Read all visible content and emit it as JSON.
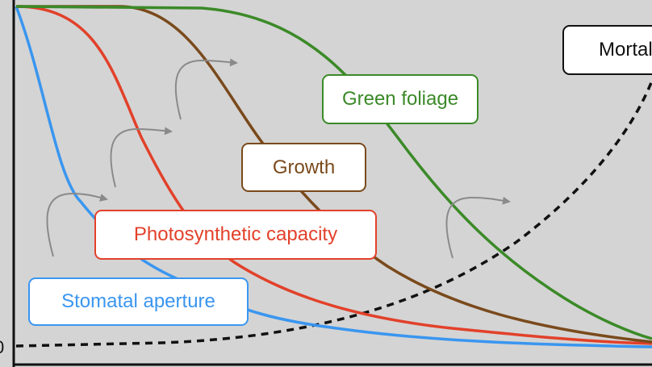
{
  "labels": {
    "mortality": "Mortality",
    "green_foliage": "Green foliage",
    "growth": "Growth",
    "photosynthetic_capacity": "Photosynthetic capacity",
    "stomatal_aperture": "Stomatal aperture"
  },
  "axis": {
    "zero_label": "0"
  },
  "colors": {
    "background": "#d4d4d4",
    "green": "#3b8a28",
    "brown": "#7a4a1c",
    "red": "#e2412a",
    "blue": "#3a96f0",
    "arrow": "#8a8a8a",
    "mortality": "#111111"
  },
  "curves": [
    {
      "id": "stomatal-aperture-curve",
      "color_key": "blue",
      "shape": "sigmoid-decline",
      "order": 1
    },
    {
      "id": "photosynthetic-capacity-curve",
      "color_key": "red",
      "shape": "sigmoid-decline",
      "order": 2
    },
    {
      "id": "growth-curve",
      "color_key": "brown",
      "shape": "sigmoid-decline",
      "order": 3
    },
    {
      "id": "green-foliage-curve",
      "color_key": "green",
      "shape": "sigmoid-decline",
      "order": 4
    },
    {
      "id": "mortality-curve",
      "color_key": "mortality",
      "shape": "exponential-rise",
      "style": "dashed"
    }
  ]
}
